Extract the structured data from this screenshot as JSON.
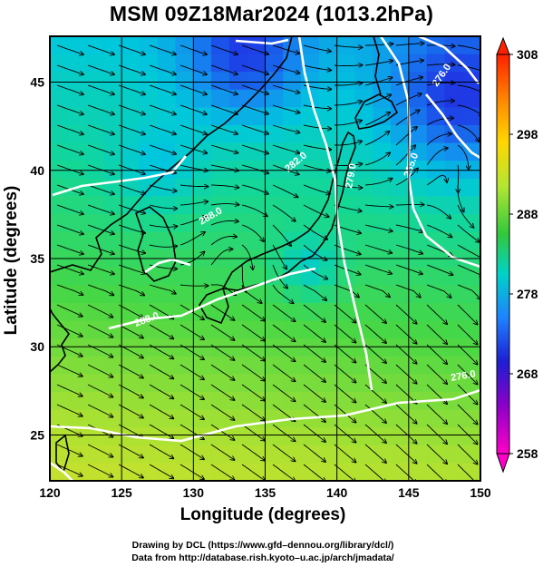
{
  "title": "MSM 09Z18Mar2024 (1013.2hPa)",
  "axes": {
    "xlabel": "Longitude (degrees)",
    "ylabel": "Latitude  (degrees)",
    "x_ticks": [
      "120",
      "125",
      "130",
      "135",
      "140",
      "145",
      "150"
    ],
    "y_ticks": [
      "25",
      "30",
      "35",
      "40",
      "45"
    ],
    "xlim": [
      120,
      150
    ],
    "ylim": [
      22.4,
      47.6
    ],
    "grid": true
  },
  "colorbar": {
    "ticks": [
      "308",
      "298",
      "288",
      "278",
      "268",
      "258"
    ],
    "range": [
      258,
      308
    ],
    "colors": [
      "#ff0000",
      "#ff8c00",
      "#ffd700",
      "#c8e632",
      "#32c83c",
      "#00dcdc",
      "#1e64ff",
      "#1e00c8",
      "#8c00c8",
      "#ff00c8"
    ]
  },
  "contour_labels": [
    "285.0",
    "282.0",
    "288.0",
    "279.0",
    "288.0",
    "276.0",
    "276.0"
  ],
  "credits": {
    "line1": "Drawing by DCL (https://www.gfd–dennou.org/library/dcl/)",
    "line2": "Data from http://database.rish.kyoto–u.ac.jp/arch/jmadata/"
  }
}
